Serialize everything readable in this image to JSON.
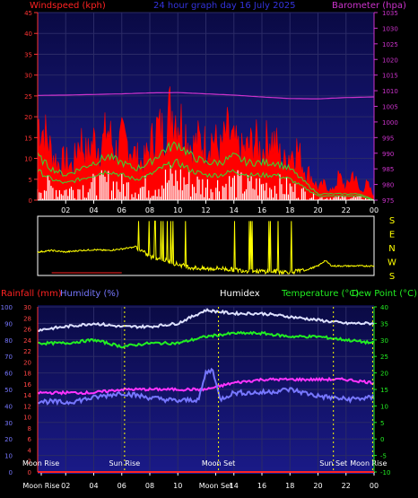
{
  "header": {
    "windspeed_label": "Windspeed (kph)",
    "title": "24 hour graph day  16 July 2025",
    "barometer_label": "Barometer (hpa)"
  },
  "lower_header": {
    "rainfall_label": "Rainfall (mm)",
    "humidity_label": "Humidity (%)",
    "humidex_label": "Humidex",
    "temperature_label": "Temperature (°C)",
    "dewpoint_label": "Dew Point (°C)"
  },
  "colors": {
    "wind": "#ff0000",
    "gust_avg": "#33dd33",
    "windspeed_text": "#ff2222",
    "title_text": "#2222dd",
    "barometer": "#cc33cc",
    "plot_bg_top": "#0a0a44",
    "plot_bg_bottom": "#1a1a88",
    "direction": "#ffff00",
    "humidex": "#dde0ff",
    "temperature": "#22ee22",
    "dewpoint": "#ff33ff",
    "humidity": "#7777ff",
    "rainfall": "#ff2222",
    "event_line": "#ffff00"
  },
  "chart_data": [
    {
      "type": "area",
      "name": "wind",
      "xlabel": "",
      "x_ticks": [
        "02",
        "04",
        "06",
        "08",
        "10",
        "12",
        "14",
        "16",
        "18",
        "20",
        "22",
        "00"
      ],
      "ylim_left": [
        0,
        45
      ],
      "y_ticks_left": [
        "0",
        "5",
        "10",
        "15",
        "20",
        "25",
        "30",
        "35",
        "40",
        "45"
      ],
      "ylim_right": [
        975,
        1035
      ],
      "y_ticks_right": [
        "975",
        "980",
        "985",
        "990",
        "995",
        "1000",
        "1005",
        "1010",
        "1015",
        "1020",
        "1025",
        "1030",
        "1035"
      ],
      "grid": true,
      "series": [
        {
          "name": "Windspeed (kph)",
          "x": [
            0,
            0.5,
            1,
            1.5,
            2,
            2.5,
            3,
            3.5,
            4,
            4.5,
            5,
            5.5,
            6,
            6.5,
            7,
            7.5,
            8,
            8.5,
            9,
            9.5,
            10,
            10.5,
            11,
            11.5,
            12,
            12.5,
            13,
            13.5,
            14,
            14.5,
            15,
            15.5,
            16,
            16.5,
            17,
            17.5,
            18,
            18.5,
            19,
            19.5,
            20,
            20.5,
            21,
            21.5,
            22,
            22.5,
            23,
            23.5,
            24
          ],
          "values": [
            20,
            17,
            12,
            9,
            10,
            8,
            16,
            11,
            15,
            13,
            18,
            12,
            15,
            14,
            11,
            9,
            13,
            18,
            17,
            23,
            21,
            18,
            13,
            15,
            14,
            16,
            12,
            17,
            14,
            12,
            13,
            15,
            12,
            16,
            14,
            9,
            12,
            13,
            8,
            6,
            3,
            4,
            2,
            6,
            3,
            7,
            2,
            4,
            1
          ]
        },
        {
          "name": "Average",
          "x": [
            0,
            1,
            2,
            3,
            4,
            5,
            6,
            7,
            8,
            9,
            10,
            11,
            12,
            13,
            14,
            15,
            16,
            17,
            18,
            19,
            20,
            21,
            22,
            23,
            24
          ],
          "values": [
            7,
            5,
            4,
            5,
            6,
            7,
            6,
            5,
            6,
            8,
            9,
            7,
            6,
            6,
            7,
            6,
            6,
            6,
            5,
            3,
            1,
            1,
            1,
            1,
            0
          ]
        },
        {
          "name": "Barometer (hpa)",
          "x": [
            0,
            2,
            4,
            6,
            8,
            10,
            12,
            14,
            16,
            18,
            20,
            22,
            24
          ],
          "values": [
            1008.5,
            1008.6,
            1008.8,
            1009.0,
            1009.3,
            1009.4,
            1009.0,
            1008.6,
            1008.0,
            1007.5,
            1007.4,
            1007.8,
            1008.0
          ]
        }
      ]
    },
    {
      "type": "line",
      "name": "wind_direction",
      "x_ticks": [
        "02",
        "04",
        "06",
        "08",
        "10",
        "12",
        "14",
        "16",
        "18",
        "20",
        "22",
        "00"
      ],
      "y_ticks_right": [
        "S",
        "E",
        "N",
        "W",
        "S"
      ],
      "ylim": [
        0,
        360
      ],
      "series": [
        {
          "name": "Direction",
          "x": [
            0,
            1,
            2,
            3,
            4,
            5,
            6,
            7,
            8,
            9,
            10,
            11,
            12,
            13,
            14,
            15,
            16,
            17,
            18,
            19,
            20,
            20.5,
            21,
            22,
            23,
            24
          ],
          "values": [
            140,
            150,
            140,
            150,
            155,
            150,
            160,
            175,
            110,
            90,
            60,
            40,
            30,
            35,
            25,
            20,
            15,
            15,
            10,
            20,
            50,
            85,
            50,
            50,
            50,
            50
          ]
        }
      ]
    },
    {
      "type": "line",
      "name": "temperature_humidity",
      "x_ticks": [
        "02",
        "04",
        "06",
        "08",
        "10",
        "12",
        "14",
        "16",
        "18",
        "20",
        "22",
        "00"
      ],
      "ylim_humidity": [
        0,
        100
      ],
      "y_ticks_humidity": [
        "0",
        "10",
        "20",
        "30",
        "40",
        "50",
        "60",
        "70",
        "80",
        "90",
        "100"
      ],
      "ylim_rain": [
        0,
        30
      ],
      "y_ticks_rain": [
        "0",
        "2",
        "4",
        "6",
        "8",
        "10",
        "12",
        "14",
        "16",
        "18",
        "20",
        "22",
        "24",
        "26",
        "28",
        "30"
      ],
      "ylim_temperature": [
        -10,
        40
      ],
      "y_ticks_temperature": [
        "-10",
        "-5",
        "0",
        "5",
        "10",
        "15",
        "20",
        "25",
        "30",
        "35",
        "40"
      ],
      "grid": true,
      "series": [
        {
          "name": "Humidex",
          "x": [
            0,
            2,
            4,
            6,
            8,
            10,
            12,
            14,
            16,
            18,
            20,
            22,
            24
          ],
          "values": [
            33,
            34,
            35,
            34,
            34,
            35,
            39,
            38,
            38,
            37,
            36,
            35,
            35
          ]
        },
        {
          "name": "Temperature (°C)",
          "x": [
            0,
            2,
            4,
            6,
            8,
            10,
            12,
            14,
            16,
            18,
            20,
            22,
            24
          ],
          "values": [
            29,
            29,
            30,
            28,
            29,
            29,
            31,
            32,
            32,
            31,
            31,
            30,
            29
          ]
        },
        {
          "name": "Dew Point (°C)",
          "x": [
            0,
            2,
            4,
            6,
            8,
            10,
            12,
            14,
            16,
            18,
            20,
            22,
            24
          ],
          "values": [
            14,
            14,
            14,
            15,
            15,
            15,
            15,
            17,
            18,
            18,
            18,
            18,
            17
          ]
        },
        {
          "name": "Humidity (%)",
          "x": [
            0,
            2,
            4,
            6,
            8,
            10,
            11.5,
            12,
            12.5,
            13,
            14,
            16,
            18,
            20,
            22,
            24
          ],
          "values": [
            43,
            42,
            45,
            48,
            45,
            43,
            44,
            60,
            62,
            44,
            48,
            48,
            50,
            46,
            44,
            45
          ]
        },
        {
          "name": "Rainfall (mm)",
          "x": [
            0,
            24
          ],
          "values": [
            0,
            0
          ]
        }
      ],
      "events": [
        {
          "label": "Moon Rise",
          "x": 0.0
        },
        {
          "label": "Sun Rise",
          "x": 6.2
        },
        {
          "label": "Moon Set",
          "x": 12.9
        },
        {
          "label": "Sun Set",
          "x": 21.1
        },
        {
          "label": "Moon Rise",
          "x": 23.9
        }
      ],
      "x_tick_labels_bottom": [
        "Moon Rise",
        "02",
        "04",
        "06",
        "08",
        "10",
        "Moon Set",
        "14",
        "16",
        "18",
        "20",
        "22",
        "00"
      ]
    }
  ]
}
